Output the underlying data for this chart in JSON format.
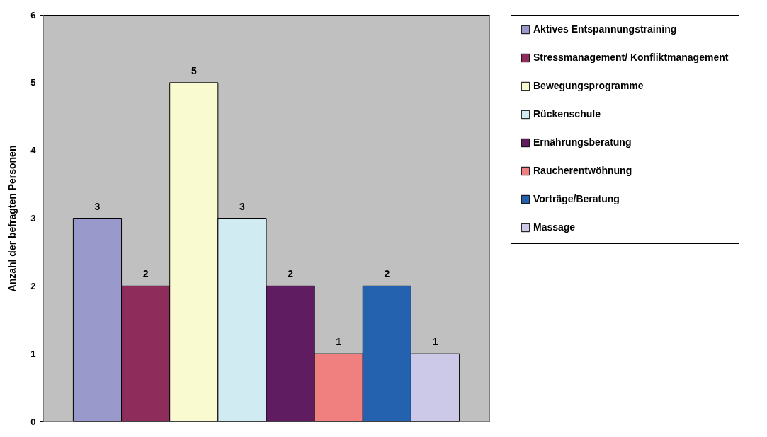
{
  "chart_data": {
    "type": "bar",
    "ylabel": "Anzahl der befragten Personen",
    "categories": [
      null
    ],
    "series": [
      {
        "name": "Aktives Entspannungstraining",
        "color": "#9999cc",
        "values": [
          3
        ]
      },
      {
        "name": "Stressmanagement/ Konfliktmanagement",
        "color": "#8e2c5c",
        "values": [
          2
        ]
      },
      {
        "name": "Bewegungsprogramme",
        "color": "#fafad0",
        "values": [
          5
        ]
      },
      {
        "name": "Rückenschule",
        "color": "#d0ecf2",
        "values": [
          3
        ]
      },
      {
        "name": "Ernährungsberatung",
        "color": "#601c60",
        "values": [
          2
        ]
      },
      {
        "name": "Raucherentwöhnung",
        "color": "#f08080",
        "values": [
          1
        ]
      },
      {
        "name": "Vorträge/Beratung",
        "color": "#2462b0",
        "values": [
          2
        ]
      },
      {
        "name": "Massage",
        "color": "#ccc8e8",
        "values": [
          1
        ]
      }
    ],
    "ylim": [
      0,
      6
    ],
    "yticks": [
      0,
      1,
      2,
      3,
      4,
      5,
      6
    ],
    "grid": "y",
    "legend": "right",
    "data_labels": true
  }
}
